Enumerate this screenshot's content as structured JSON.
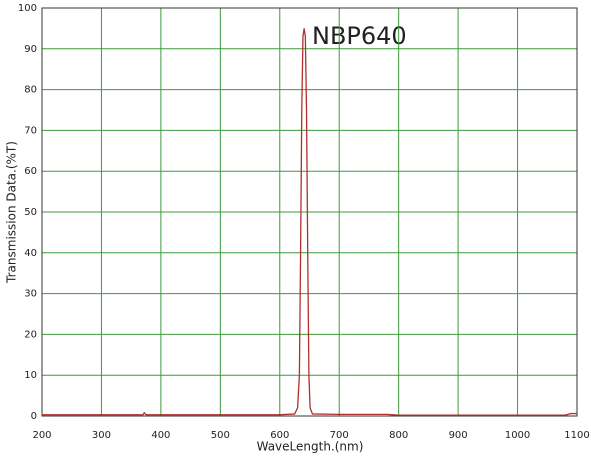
{
  "chart_data": {
    "type": "line",
    "x_label": "WaveLength.(nm)",
    "y_label": "Transmission Data.(%T)",
    "annotation": "NBP640",
    "x": [
      200,
      370,
      372,
      375,
      600,
      625,
      630,
      633,
      635,
      637,
      639,
      641,
      643,
      645,
      647,
      649,
      651,
      655,
      700,
      780,
      800,
      1080,
      1090,
      1100
    ],
    "series": [
      {
        "name": "NBP640",
        "color": "#b03030",
        "values": [
          0.3,
          0.3,
          0.8,
          0.3,
          0.3,
          0.5,
          2,
          10,
          40,
          75,
          93,
          95,
          93,
          75,
          40,
          10,
          2,
          0.5,
          0.4,
          0.4,
          0.2,
          0.2,
          0.6,
          0.6
        ]
      }
    ],
    "xlim": [
      200,
      1100
    ],
    "ylim": [
      0,
      100
    ],
    "xticks": [
      200,
      300,
      400,
      500,
      600,
      700,
      800,
      900,
      1000,
      1100
    ],
    "yticks": [
      0,
      10,
      20,
      30,
      40,
      50,
      60,
      70,
      80,
      90,
      100
    ],
    "grid": true,
    "grid_color": "#3c9a3c"
  }
}
